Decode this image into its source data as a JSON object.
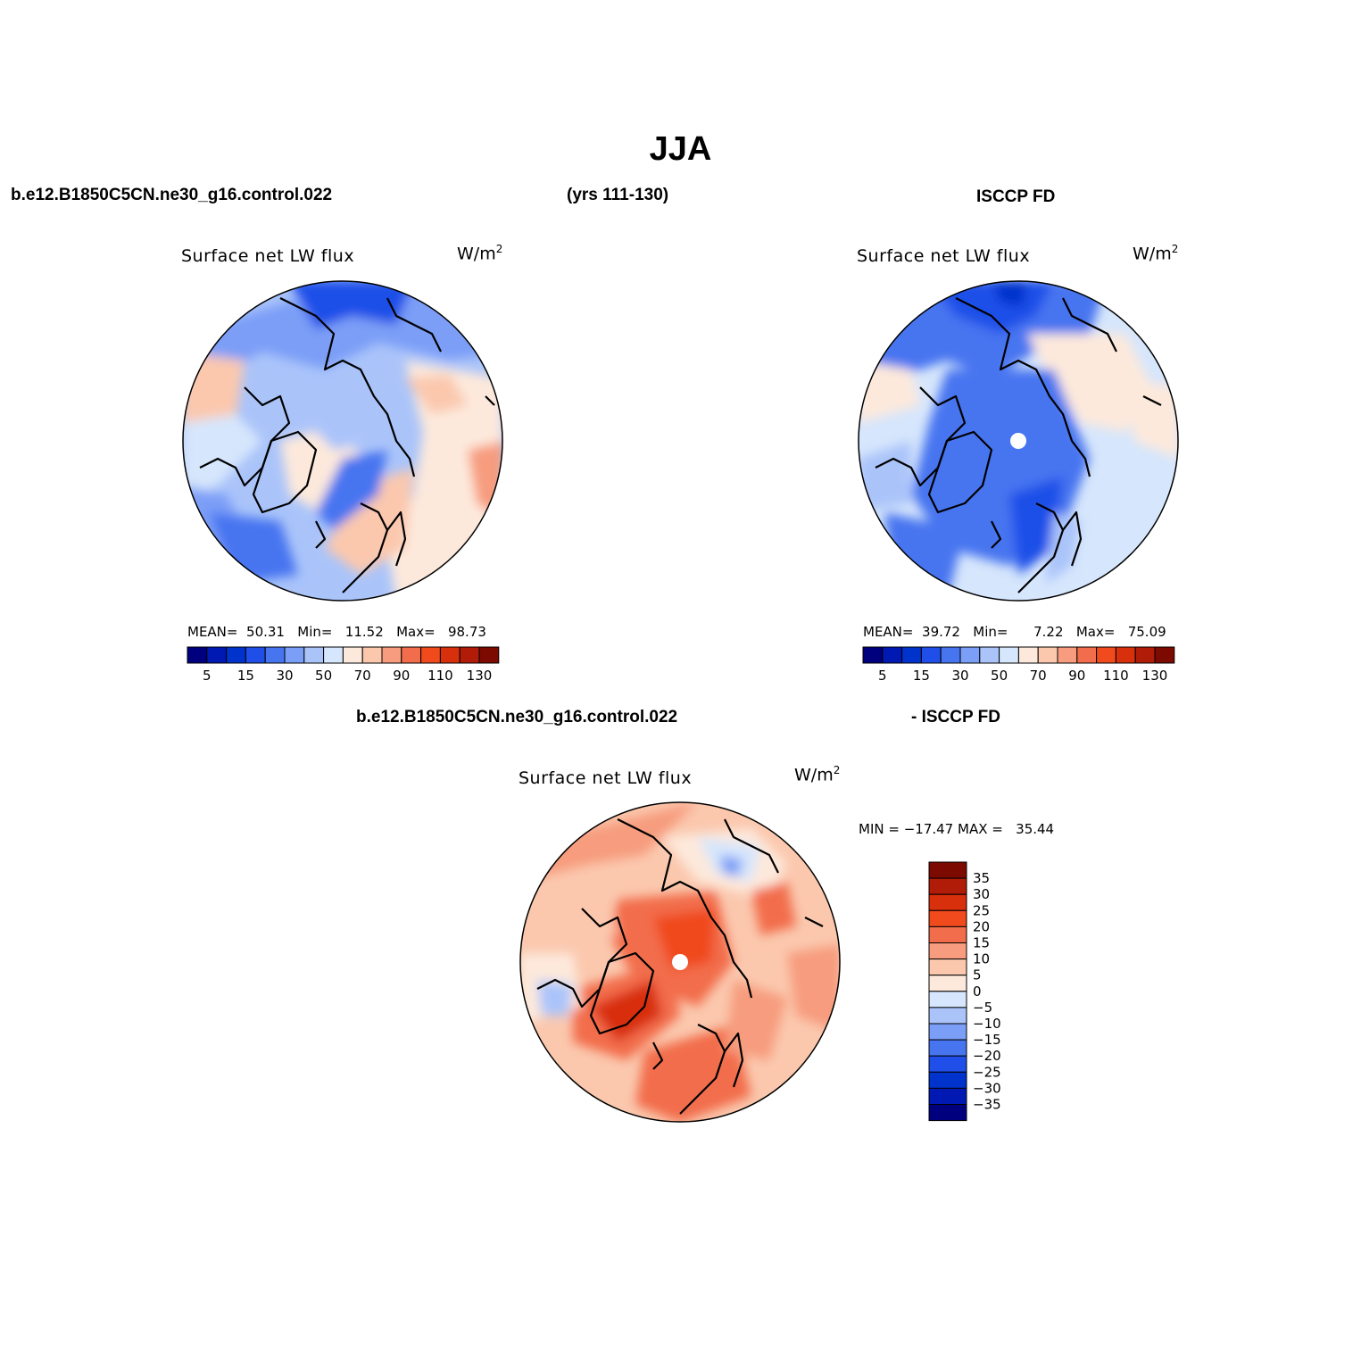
{
  "title": "JJA",
  "header": {
    "case_name": "b.e12.B1850C5CN.ne30_g16.control.022",
    "years": "(yrs 111-130)",
    "obs_name": "ISCCP FD"
  },
  "diff_header": {
    "case_name": "b.e12.B1850C5CN.ne30_g16.control.022",
    "obs_name": "- ISCCP FD"
  },
  "panels": [
    {
      "id": "model",
      "variable": "Surface net LW flux",
      "units": "W/m",
      "units_sup": "2",
      "stats": {
        "mean_label": "MEAN=",
        "mean": "50.31",
        "min_label": "Min=",
        "min": "11.52",
        "max_label": "Max=",
        "max": "98.73"
      }
    },
    {
      "id": "obs",
      "variable": "Surface net LW flux",
      "units": "W/m",
      "units_sup": "2",
      "stats": {
        "mean_label": "MEAN=",
        "mean": "39.72",
        "min_label": "Min=",
        "min": "7.22",
        "max_label": "Max=",
        "max": "75.09"
      }
    },
    {
      "id": "diff",
      "variable": "Surface net LW flux",
      "units": "W/m",
      "units_sup": "2",
      "stats": {
        "min_label": "MIN =",
        "min": "−17.47",
        "max_label": "MAX =",
        "max": "35.44"
      }
    }
  ],
  "colorbar_main": {
    "colors": [
      "#00007f",
      "#0019b2",
      "#0033cc",
      "#1f4fe8",
      "#4775f0",
      "#7b9ef7",
      "#aac4fa",
      "#d6e6fc",
      "#fde9dc",
      "#fbc8ae",
      "#f79c7e",
      "#f26d4b",
      "#f04a1d",
      "#d82f0c",
      "#b01c08",
      "#7d0a00"
    ],
    "tick_labels": [
      "5",
      "15",
      "30",
      "50",
      "70",
      "90",
      "110",
      "130"
    ]
  },
  "colorbar_diff": {
    "colors": [
      "#7d0a00",
      "#b01c08",
      "#d82f0c",
      "#f04a1d",
      "#f26d4b",
      "#f79c7e",
      "#fbc8ae",
      "#fde9dc",
      "#d6e6fc",
      "#aac4fa",
      "#7b9ef7",
      "#4775f0",
      "#1f4fe8",
      "#0033cc",
      "#0019b2",
      "#00007f"
    ],
    "tick_labels": [
      "35",
      "30",
      "25",
      "20",
      "15",
      "10",
      "5",
      "0",
      "−5",
      "−10",
      "−15",
      "−20",
      "−25",
      "−30",
      "−35"
    ]
  }
}
